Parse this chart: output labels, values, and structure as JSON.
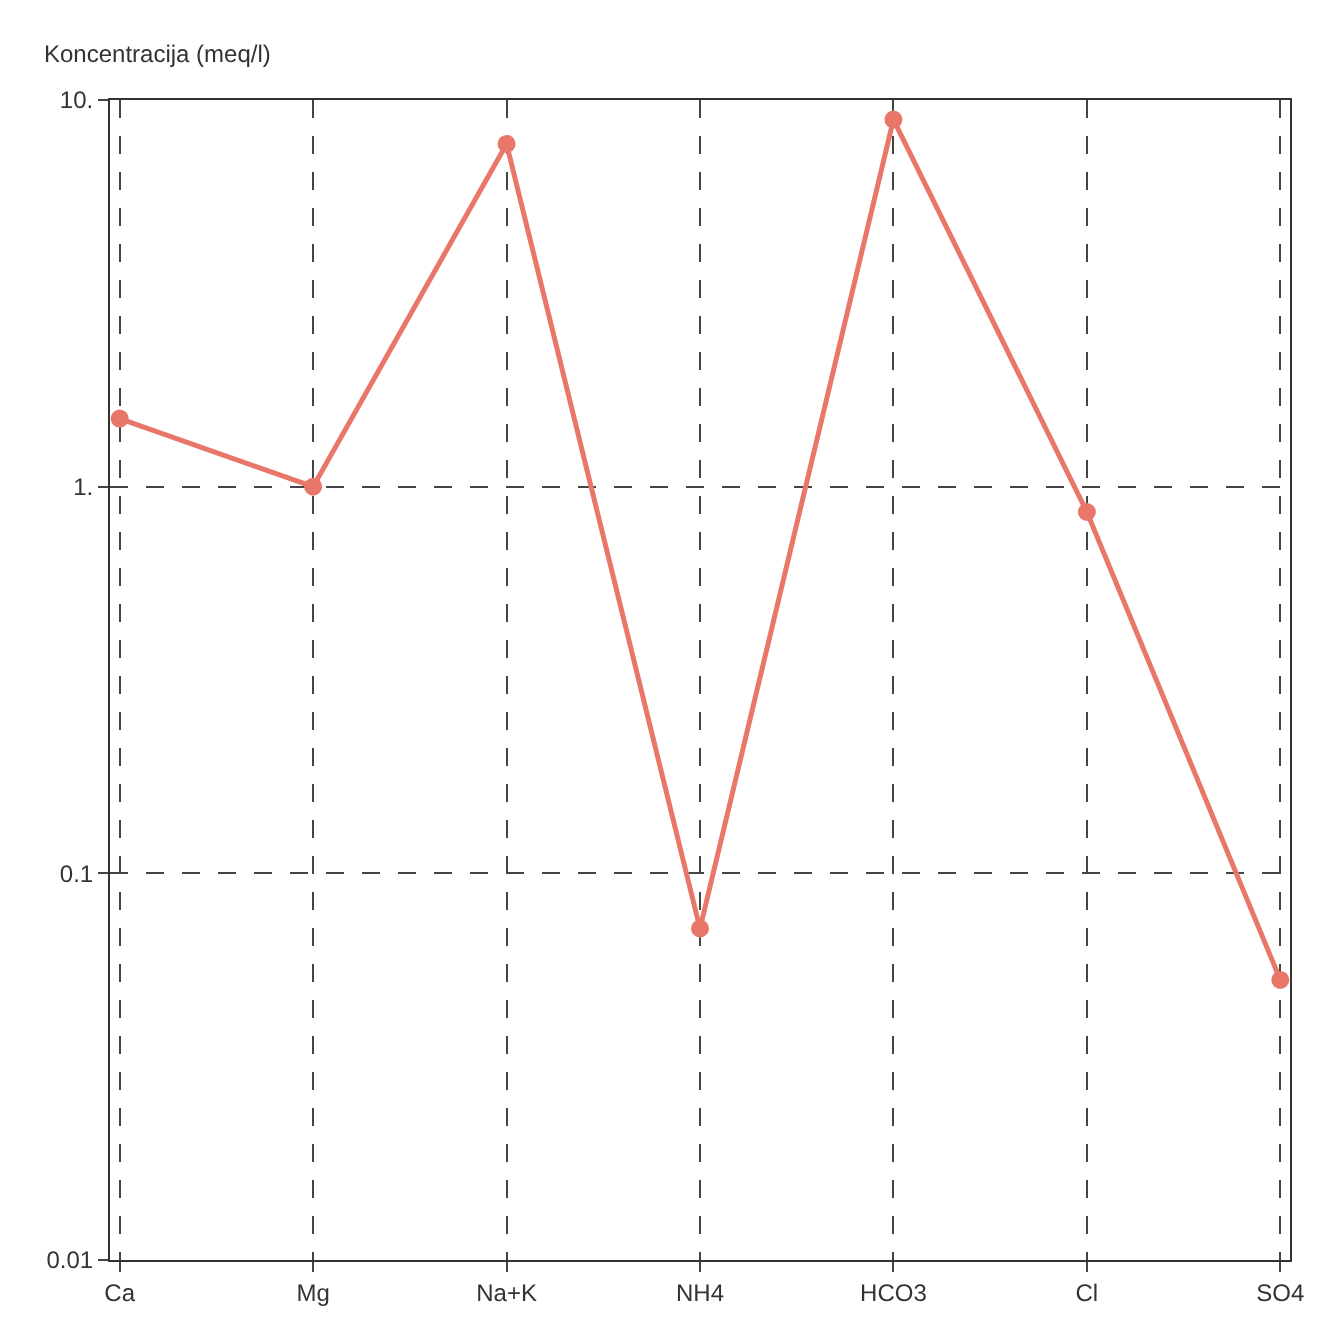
{
  "chart_data": {
    "type": "line",
    "ylabel": "Koncentracija (meq/l)",
    "categories": [
      "Ca",
      "Mg",
      "Na+K",
      "NH4",
      "HCO3",
      "Cl",
      "SO4"
    ],
    "series": [
      {
        "color": "#e8776a",
        "values": [
          1.5,
          1.0,
          7.7,
          0.072,
          8.9,
          0.86,
          0.053
        ]
      }
    ],
    "log": "y",
    "ylim": [
      0.01,
      10
    ],
    "yticks": [
      {
        "value": 0.01,
        "label": "0.01"
      },
      {
        "value": 0.1,
        "label": "0.1"
      },
      {
        "value": 1,
        "label": "1."
      },
      {
        "value": 10,
        "label": "10."
      }
    ],
    "grid": true,
    "marker": "circle",
    "line_style": "solid"
  }
}
